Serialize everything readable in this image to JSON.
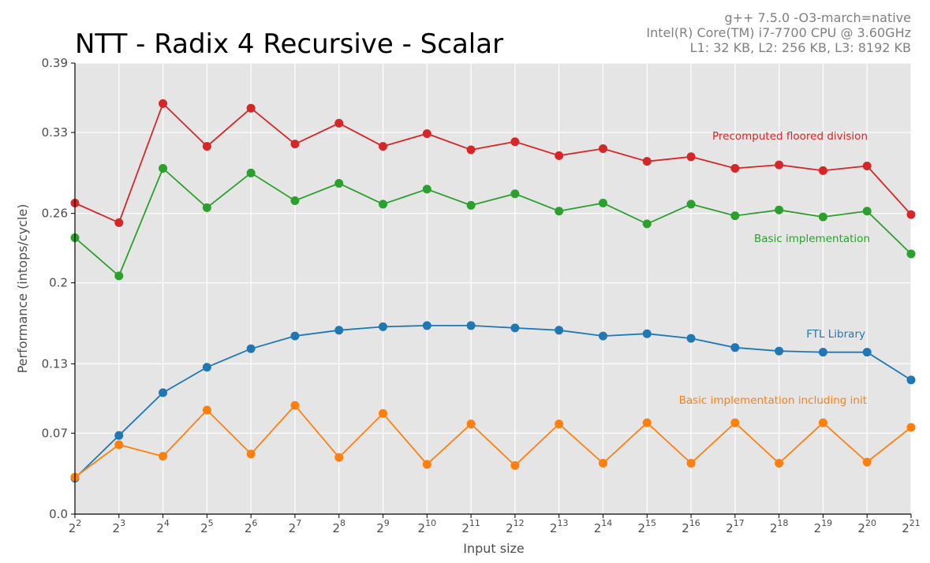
{
  "chart_data": {
    "type": "line",
    "title": "NTT - Radix 4 Recursive - Scalar",
    "info_lines": [
      "g++ 7.5.0 -O3-march=native",
      "Intel(R) Core(TM) i7-7700 CPU @ 3.60GHz",
      "L1: 32 KB, L2: 256 KB, L3: 8192 KB"
    ],
    "xlabel": "Input size",
    "ylabel": "Performance (intops/cycle)",
    "x_tick_base": "2",
    "x_exponents": [
      2,
      3,
      4,
      5,
      6,
      7,
      8,
      9,
      10,
      11,
      12,
      13,
      14,
      15,
      16,
      17,
      18,
      19,
      20,
      21
    ],
    "y_ticks": [
      "0.0",
      "0.07",
      "0.13",
      "0.2",
      "0.26",
      "0.33",
      "0.39"
    ],
    "ylim": [
      0,
      0.39
    ],
    "grid": true,
    "series": [
      {
        "name": "Precomputed floored division",
        "color": "#d62728",
        "values": [
          0.269,
          0.252,
          0.355,
          0.318,
          0.351,
          0.32,
          0.338,
          0.318,
          0.329,
          0.315,
          0.322,
          0.31,
          0.316,
          0.305,
          0.309,
          0.299,
          0.302,
          0.297,
          0.301,
          0.259
        ]
      },
      {
        "name": "Basic implementation",
        "color": "#2ca02c",
        "values": [
          0.239,
          0.206,
          0.299,
          0.265,
          0.295,
          0.271,
          0.286,
          0.268,
          0.281,
          0.267,
          0.277,
          0.262,
          0.269,
          0.251,
          0.268,
          0.258,
          0.263,
          0.257,
          0.262,
          0.225
        ]
      },
      {
        "name": "FTL Library",
        "color": "#1f77b4",
        "values": [
          0.031,
          0.068,
          0.105,
          0.127,
          0.143,
          0.154,
          0.159,
          0.162,
          0.163,
          0.163,
          0.161,
          0.159,
          0.154,
          0.156,
          0.152,
          0.144,
          0.141,
          0.14,
          0.14,
          0.116
        ]
      },
      {
        "name": "Basic implementation including init",
        "color": "#ff7f0e",
        "values": [
          0.032,
          0.06,
          0.05,
          0.09,
          0.052,
          0.094,
          0.049,
          0.087,
          0.043,
          0.078,
          0.042,
          0.078,
          0.044,
          0.079,
          0.044,
          0.079,
          0.044,
          0.079,
          0.045,
          0.075
        ]
      }
    ]
  }
}
